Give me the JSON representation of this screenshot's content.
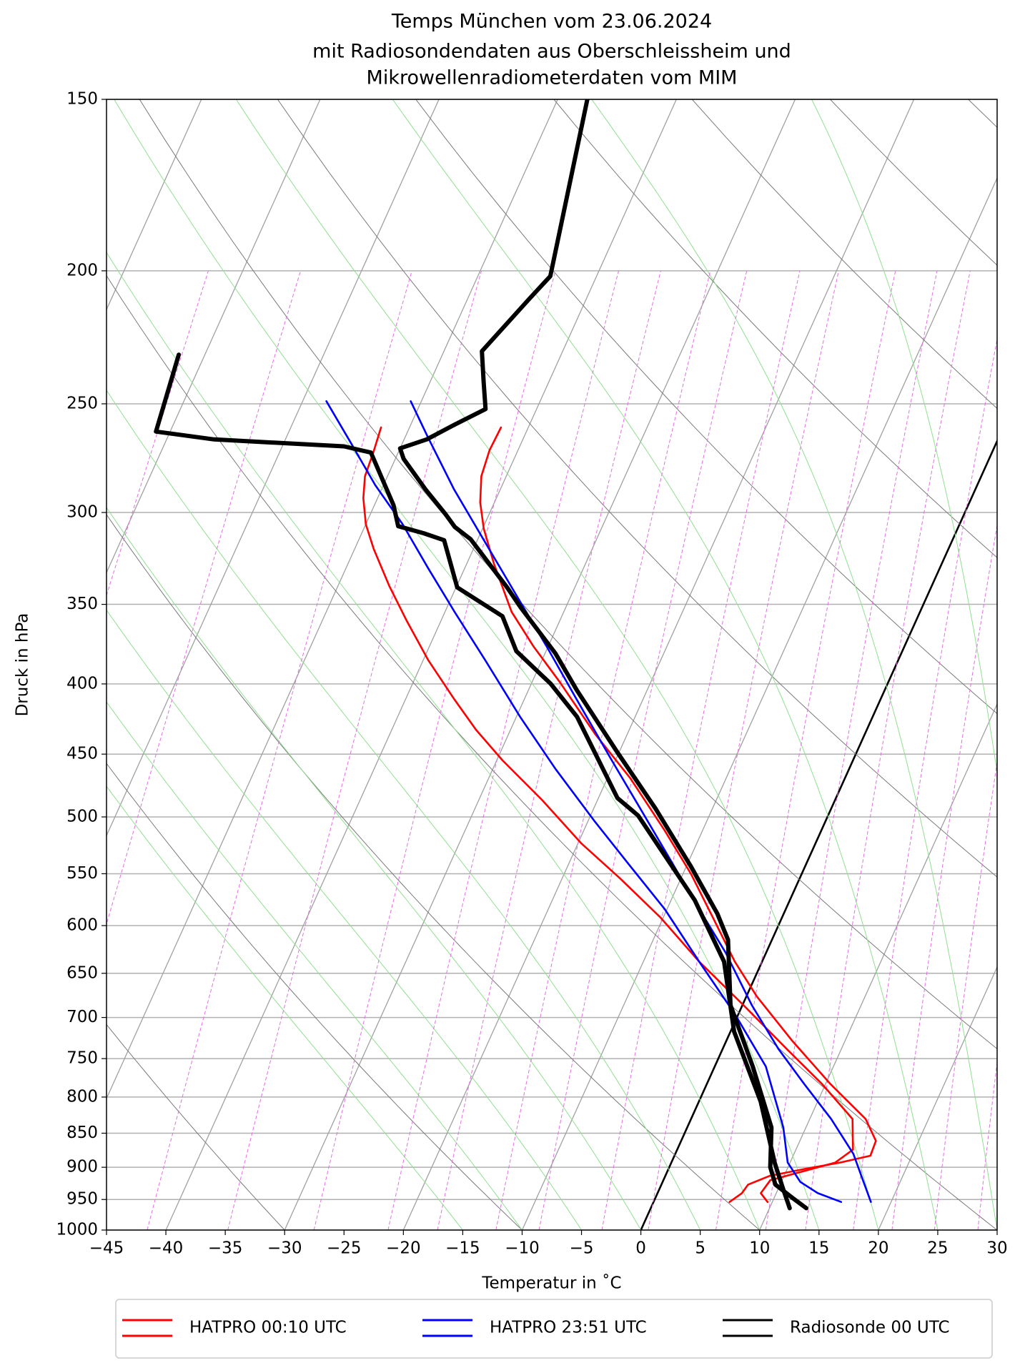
{
  "chart_data": {
    "type": "skewt",
    "title": [
      "Temps München vom 23.06.2024",
      "mit Radiosondendaten aus Oberschleissheim und",
      "Mikrowellenradiometerdaten vom MIM"
    ],
    "xlabel": "Temperatur in ˚C",
    "ylabel": "Druck in hPa",
    "xlim": [
      -45,
      30
    ],
    "xticks": [
      {
        "value": -45,
        "label": "−45"
      },
      {
        "value": -40,
        "label": "−40"
      },
      {
        "value": -35,
        "label": "−35"
      },
      {
        "value": -30,
        "label": "−30"
      },
      {
        "value": -25,
        "label": "−25"
      },
      {
        "value": -20,
        "label": "−20"
      },
      {
        "value": -15,
        "label": "−15"
      },
      {
        "value": -10,
        "label": "−10"
      },
      {
        "value": -5,
        "label": "−5"
      },
      0,
      5,
      10,
      15,
      20,
      25,
      30
    ],
    "ylim": [
      1000,
      150
    ],
    "yscale": "log",
    "yticks": [
      150,
      200,
      250,
      300,
      350,
      400,
      450,
      500,
      550,
      600,
      650,
      700,
      750,
      800,
      850,
      900,
      950,
      1000
    ],
    "grid": true,
    "isotherms": [
      -90,
      -80,
      -70,
      -60,
      -50,
      -40,
      -30,
      -20,
      -10,
      0,
      10,
      20,
      30
    ],
    "isotherm_highlight": 0,
    "dry_adiabats": [
      -30,
      -10,
      10,
      30,
      50,
      70,
      90,
      110,
      130,
      150,
      170
    ],
    "moist_adiabats": [
      -15,
      -10,
      -5,
      0,
      5,
      10,
      15,
      20,
      25,
      30,
      35
    ],
    "mixing_ratios": [
      0.01,
      0.03,
      0.1,
      0.2,
      0.4,
      0.7,
      1,
      1.5,
      2,
      3,
      4,
      6,
      8,
      10,
      13,
      16,
      20,
      25
    ],
    "legend": "below",
    "series": [
      {
        "name": "HATPRO 00:10 UTC",
        "color": "#ff0000",
        "linewidth": 2.6,
        "lines": [
          {
            "p": [
              260.1,
              270.2,
              282.3,
              295,
              308.3,
              327,
              354.4,
              375.8,
              398.5,
              435.2,
              468.3,
              511.4,
              550.4,
              592.2,
              637.4,
              675.9,
              727.4,
              782.6,
              830,
              861,
              882.8,
              893,
              902.4,
              913,
              926.6,
              940,
              954
            ],
            "t": [
              -42.3,
              -42.4,
              -42.1,
              -41.2,
              -39.9,
              -37.7,
              -34.4,
              -31.2,
              -27.7,
              -22.7,
              -18.1,
              -13.2,
              -9.3,
              -5.8,
              -2.3,
              0.9,
              5.5,
              10.4,
              14.7,
              16.4,
              16.5,
              14.2,
              11.5,
              8.8,
              7.3,
              7.1,
              6.4
            ]
          },
          {
            "p": [
              260.1,
              271.3,
              282.3,
              292.9,
              306,
              318.9,
              339.2,
              359.7,
              384.2,
              410.4,
              432,
              454.8,
              485.8,
              522.8,
              554.5,
              592.2,
              637.4,
              685.8,
              738,
              782.6,
              830,
              873.8,
              893,
              919.8,
              940,
              954
            ],
            "t": [
              -52.4,
              -52.1,
              -51.9,
              -51.2,
              -50.0,
              -48.4,
              -45.7,
              -42.9,
              -39.6,
              -35.9,
              -32.9,
              -29.5,
              -24.7,
              -19.7,
              -15.1,
              -10.2,
              -5.3,
              0.1,
              5.4,
              9.7,
              13.6,
              14.8,
              13.8,
              9.0,
              8.7,
              9.6
            ]
          }
        ]
      },
      {
        "name": "HATPRO 23:51 UTC",
        "color": "#0000ff",
        "linewidth": 2.6,
        "lines": [
          {
            "p": [
              248.9,
              264.3,
              288.6,
              315.2,
              344.2,
              375.8,
              410.4,
              454.8,
              496.6,
              542.4,
              583.6,
              628,
              685.8,
              738,
              782.6,
              830,
              880,
              913,
              954
            ],
            "t": [
              -50.9,
              -48.1,
              -43.9,
              -39.3,
              -34.7,
              -30.1,
              -25.6,
              -20.3,
              -15.7,
              -11.1,
              -7.3,
              -3.4,
              0.8,
              4.7,
              8.2,
              11.8,
              15.0,
              16.5,
              18.3
            ]
          },
          {
            "p": [
              248.9,
              266.2,
              286.5,
              306,
              329.3,
              354.4,
              384.2,
              422.6,
              461.5,
              504,
              542.4,
              583.6,
              637.4,
              696,
              760,
              842,
              893,
              922.5,
              940,
              954
            ],
            "t": [
              -58.0,
              -54.5,
              -50.7,
              -46.9,
              -43.1,
              -39.2,
              -34.8,
              -29.7,
              -24.7,
              -19.4,
              -14.8,
              -10.2,
              -5.3,
              -0.3,
              4.3,
              8.1,
              9.8,
              11.6,
              13.5,
              15.8
            ]
          }
        ]
      },
      {
        "name": "Radiosonde 00 UTC",
        "color": "#000000",
        "linewidth": 6,
        "lines": [
          {
            "p": [
              150,
              201.8,
              209.6,
              228.9,
              240.9,
              252.2,
              258.5,
              265.4,
              269.4,
              274.2,
              288.6,
              300.7,
              307.4,
              313.8,
              340.2,
              351.8,
              380.2,
              404.4,
              448.2,
              493,
              542.4,
              588,
              614.4,
              685.8,
              760,
              842,
              899.7,
              926.6,
              947,
              964
            ],
            "t": [
              -47.5,
              -43.9,
              -44.8,
              -46.8,
              -45.5,
              -44.3,
              -46.2,
              -48.1,
              -50.0,
              -49.3,
              -46.3,
              -43.7,
              -42.4,
              -40.6,
              -35.7,
              -33.8,
              -29.1,
              -25.9,
              -20.2,
              -14.8,
              -9.7,
              -5.6,
              -3.7,
              -1.0,
              3.2,
              7.1,
              8.5,
              9.6,
              11.5,
              13.1
            ]
          },
          {
            "p": [
              230.2,
              261.9,
              265.4,
              268.5,
              271.3,
              296.3,
              307,
              310.6,
              314.3,
              340.2,
              357,
              378.6,
              399.7,
              422.6,
              484.4,
              498.8,
              575,
              637.4,
              716.7,
              806,
              893,
              933,
              964
            ],
            "t": [
              -72.2,
              -71.2,
              -66.0,
              -54.8,
              -52.3,
              -48.4,
              -47.2,
              -44.8,
              -42.8,
              -39.9,
              -35.0,
              -32.5,
              -28.4,
              -24.9,
              -18.4,
              -16.0,
              -8.0,
              -3.2,
              0.3,
              5.2,
              8.7,
              10.4,
              11.7
            ]
          }
        ]
      }
    ]
  }
}
